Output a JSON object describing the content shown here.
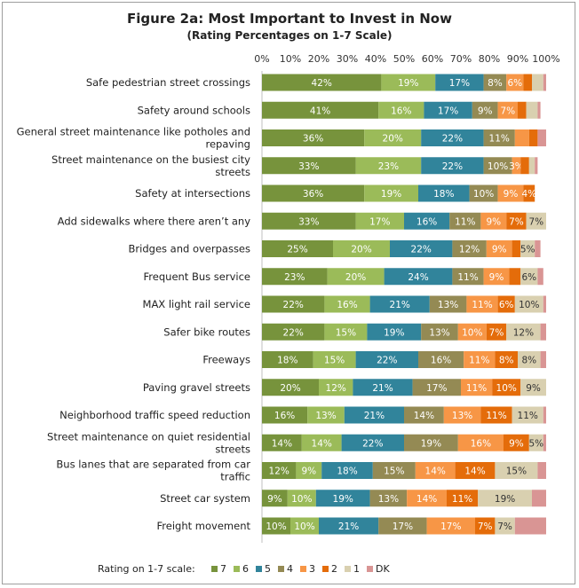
{
  "chart_data": {
    "type": "bar",
    "orientation": "horizontal",
    "stacked": true,
    "title": "Figure 2a: Most Important to Invest in Now",
    "subtitle": "(Rating Percentages on 1-7 Scale)",
    "xlim": [
      0,
      100
    ],
    "x_ticks": [
      "0%",
      "10%",
      "20%",
      "30%",
      "40%",
      "50%",
      "60%",
      "70%",
      "80%",
      "90%",
      "100%"
    ],
    "legend_title": "Rating on 1-7 scale:",
    "legend": [
      "7",
      "6",
      "5",
      "4",
      "3",
      "2",
      "1",
      "DK"
    ],
    "colors": [
      "#77933c",
      "#9bbb59",
      "#31849b",
      "#948a54",
      "#f79646",
      "#e46c0a",
      "#d9d0b0",
      "#d99594"
    ],
    "categories": [
      "Safe pedestrian street crossings",
      "Safety around schools",
      "General street maintenance like potholes and repaving",
      "Street maintenance on the busiest city streets",
      "Safety at intersections",
      "Add sidewalks where there aren’t any",
      "Bridges and overpasses",
      "Frequent Bus service",
      "MAX light rail service",
      "Safer bike routes",
      "Freeways",
      "Paving gravel streets",
      "Neighborhood traffic speed reduction",
      "Street maintenance on quiet residential streets",
      "Bus lanes that are separated from car traffic",
      "Street car system",
      "Freight movement"
    ],
    "series": [
      {
        "name": "7",
        "values": [
          42,
          41,
          36,
          33,
          36,
          33,
          25,
          23,
          22,
          22,
          18,
          20,
          16,
          14,
          12,
          9,
          10
        ],
        "labels": [
          "42%",
          "41%",
          "36%",
          "33%",
          "36%",
          "33%",
          "25%",
          "23%",
          "22%",
          "22%",
          "18%",
          "20%",
          "16%",
          "14%",
          "12%",
          "9%",
          "10%"
        ]
      },
      {
        "name": "6",
        "values": [
          19,
          16,
          20,
          23,
          19,
          17,
          20,
          20,
          16,
          15,
          15,
          12,
          13,
          14,
          9,
          10,
          10
        ],
        "labels": [
          "19%",
          "16%",
          "20%",
          "23%",
          "19%",
          "17%",
          "20%",
          "20%",
          "16%",
          "15%",
          "15%",
          "12%",
          "13%",
          "14%",
          "9%",
          "10%",
          "10%"
        ]
      },
      {
        "name": "5",
        "values": [
          17,
          17,
          22,
          22,
          18,
          16,
          22,
          24,
          21,
          19,
          22,
          21,
          21,
          22,
          18,
          19,
          21
        ],
        "labels": [
          "17%",
          "17%",
          "22%",
          "22%",
          "18%",
          "16%",
          "22%",
          "24%",
          "21%",
          "19%",
          "22%",
          "21%",
          "21%",
          "22%",
          "18%",
          "19%",
          "21%"
        ]
      },
      {
        "name": "4",
        "values": [
          8,
          9,
          11,
          10,
          10,
          11,
          12,
          11,
          13,
          13,
          16,
          17,
          14,
          19,
          15,
          13,
          17
        ],
        "labels": [
          "8%",
          "9%",
          "11%",
          "10%",
          "10%",
          "11%",
          "12%",
          "11%",
          "13%",
          "13%",
          "16%",
          "17%",
          "14%",
          "19%",
          "15%",
          "13%",
          "17%"
        ]
      },
      {
        "name": "3",
        "values": [
          6,
          7,
          5,
          3,
          9,
          9,
          9,
          9,
          11,
          10,
          11,
          11,
          13,
          16,
          14,
          14,
          17
        ],
        "labels": [
          "6%",
          "7%",
          "",
          "3%",
          "9%",
          "9%",
          "9%",
          "9%",
          "11%",
          "10%",
          "11%",
          "11%",
          "13%",
          "16%",
          "14%",
          "14%",
          "17%"
        ]
      },
      {
        "name": "2",
        "values": [
          3,
          3,
          3,
          3,
          4,
          7,
          3,
          4,
          6,
          7,
          8,
          10,
          11,
          9,
          14,
          11,
          7
        ],
        "labels": [
          "",
          "",
          "",
          "",
          "4%",
          "7%",
          "",
          "",
          "6%",
          "7%",
          "8%",
          "10%",
          "11%",
          "9%",
          "14%",
          "11%",
          "7%"
        ]
      },
      {
        "name": "1",
        "values": [
          4,
          4,
          0,
          2,
          0,
          7,
          5,
          6,
          10,
          12,
          8,
          9,
          11,
          5,
          15,
          19,
          7
        ],
        "labels": [
          "",
          "",
          "",
          "",
          "",
          "7%",
          "5%",
          "6%",
          "10%",
          "12%",
          "8%",
          "9%",
          "11%",
          "5%",
          "15%",
          "19%",
          "7%"
        ]
      },
      {
        "name": "DK",
        "values": [
          1,
          1,
          3,
          1,
          0,
          0,
          2,
          2,
          1,
          2,
          2,
          0,
          1,
          1,
          3,
          5,
          11
        ],
        "labels": [
          "",
          "",
          "",
          "",
          "",
          "",
          "",
          "",
          "",
          "",
          "",
          "",
          "",
          "",
          "",
          "",
          ""
        ]
      }
    ]
  }
}
